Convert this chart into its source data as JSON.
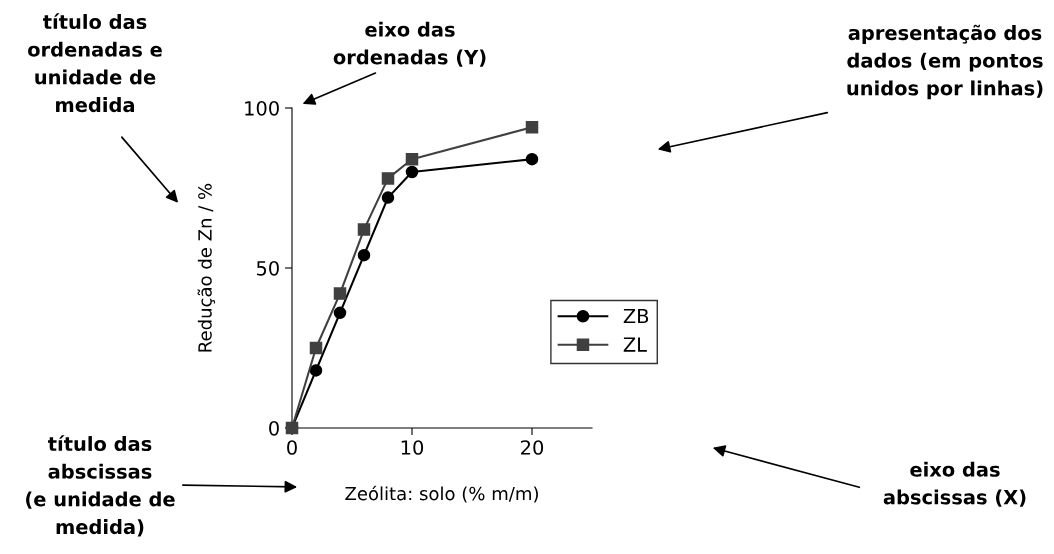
{
  "chart_data": {
    "type": "line",
    "xlabel": "Zeólita: solo (% m/m)",
    "ylabel": "Redução de Zn / %",
    "x": [
      0,
      2,
      4,
      6,
      8,
      10,
      20
    ],
    "series": [
      {
        "name": "ZB",
        "color": "#000000",
        "marker": "circle",
        "values": [
          0,
          18,
          36,
          54,
          72,
          80,
          84
        ]
      },
      {
        "name": "ZL",
        "color": "#404040",
        "marker": "square",
        "values": [
          0,
          25,
          42,
          62,
          78,
          84,
          94
        ]
      }
    ],
    "xlim": [
      0,
      25
    ],
    "xticks": [
      0,
      10,
      20
    ],
    "ylim": [
      0,
      100
    ],
    "yticks": [
      0,
      50,
      100
    ],
    "grid": false,
    "legend": "center right",
    "annotations": [
      "título das\nordenadas e\nunidade de\nmedida",
      "eixo das\nordenadas (Y)",
      "apresentação dos\ndados (em pontos\nunidos por linhas)",
      "título das\nabscissas\n(e unidade de\nmedida)",
      "eixo das\nabscissas (X)"
    ]
  }
}
